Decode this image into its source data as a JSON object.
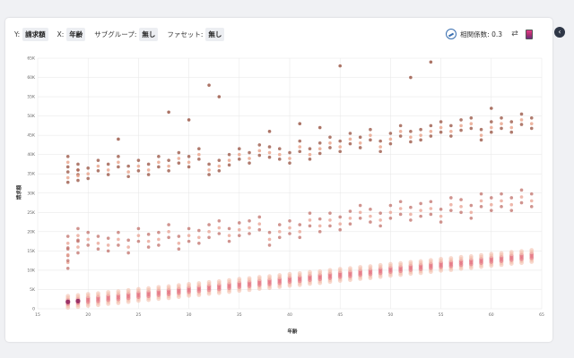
{
  "toolbar": {
    "y_label": "Y:",
    "y_value": "請求額",
    "x_label": "X:",
    "x_value": "年齢",
    "subgroup_label": "サブグループ:",
    "subgroup_value": "無し",
    "facet_label": "ファセット:",
    "facet_value": "無し",
    "correlation_label": "相関係数: 0.3"
  },
  "icons": {
    "correlation": "correlation-icon",
    "swap": "swap-axes-icon",
    "color": "color-scale-icon",
    "collapse": "chevron-left-icon"
  },
  "colors": {
    "low": "#f2b9a6",
    "mid": "#e06070",
    "high": "#8a1f5c",
    "upper": "#9c5a4a"
  },
  "chart_data": {
    "type": "scatter",
    "xlabel": "年齢",
    "ylabel": "請求額",
    "xlim": [
      15,
      65
    ],
    "ylim": [
      0,
      65000
    ],
    "x_ticks": [
      "15",
      "20",
      "25",
      "30",
      "35",
      "40",
      "45",
      "50",
      "55",
      "60",
      "65"
    ],
    "y_ticks": [
      "0",
      "5K",
      "10K",
      "15K",
      "20K",
      "25K",
      "30K",
      "35K",
      "40K",
      "45K",
      "50K",
      "55K",
      "60K",
      "65K"
    ],
    "base_band": {
      "x": [
        18,
        19,
        20,
        21,
        22,
        23,
        24,
        25,
        26,
        27,
        28,
        29,
        30,
        31,
        32,
        33,
        34,
        35,
        36,
        37,
        38,
        39,
        40,
        41,
        42,
        43,
        44,
        45,
        46,
        47,
        48,
        49,
        50,
        51,
        52,
        53,
        54,
        55,
        56,
        57,
        58,
        59,
        60,
        61,
        62,
        63,
        64
      ],
      "y": [
        1800,
        2000,
        2300,
        2500,
        2800,
        3000,
        3300,
        3600,
        3800,
        4100,
        4300,
        4600,
        4900,
        5100,
        5400,
        5600,
        5900,
        6200,
        6400,
        6700,
        6900,
        7200,
        7500,
        7700,
        8000,
        8200,
        8500,
        8800,
        9000,
        9300,
        9500,
        9800,
        10100,
        10300,
        10600,
        10800,
        11100,
        11400,
        11600,
        11900,
        12100,
        12400,
        12700,
        12900,
        13200,
        13400,
        13700
      ]
    },
    "mid_band": {
      "x": [
        18,
        18,
        18,
        19,
        19,
        20,
        21,
        22,
        23,
        24,
        25,
        26,
        27,
        28,
        29,
        30,
        31,
        32,
        33,
        34,
        35,
        36,
        37,
        38,
        39,
        40,
        41,
        42,
        43,
        44,
        45,
        46,
        47,
        48,
        49,
        50,
        51,
        52,
        53,
        54,
        55,
        56,
        57,
        58,
        59,
        60,
        61,
        62,
        63,
        64
      ],
      "y": [
        12000,
        14000,
        17000,
        16000,
        19000,
        18000,
        17000,
        16500,
        18000,
        16000,
        19000,
        17500,
        18000,
        20000,
        17000,
        19000,
        18500,
        20000,
        21000,
        19000,
        20500,
        21000,
        22000,
        18000,
        20000,
        21000,
        20000,
        23000,
        21500,
        23000,
        22000,
        23500,
        25000,
        24000,
        23000,
        25000,
        26000,
        24500,
        25500,
        26000,
        24000,
        27000,
        26500,
        25000,
        28000,
        27000,
        28000,
        27000,
        29000,
        28000
      ]
    },
    "upper_band": {
      "x": [
        18,
        18,
        19,
        19,
        20,
        21,
        22,
        23,
        24,
        25,
        26,
        27,
        28,
        29,
        30,
        31,
        32,
        33,
        34,
        35,
        36,
        37,
        38,
        39,
        40,
        41,
        42,
        43,
        44,
        45,
        46,
        47,
        48,
        49,
        50,
        51,
        52,
        53,
        54,
        55,
        56,
        57,
        58,
        59,
        60,
        61,
        62,
        63,
        64
      ],
      "y": [
        34000,
        38000,
        36000,
        34500,
        35000,
        37000,
        36000,
        38000,
        35500,
        37000,
        36000,
        38000,
        37000,
        39000,
        38000,
        40000,
        36000,
        37000,
        38500,
        40000,
        39000,
        41000,
        40500,
        40000,
        39000,
        42000,
        40000,
        41500,
        43000,
        42000,
        44000,
        43000,
        45000,
        42000,
        44000,
        46000,
        44500,
        45000,
        46000,
        47000,
        46000,
        47500,
        48000,
        45000,
        47000,
        48000,
        47000,
        49000,
        48000
      ]
    },
    "outliers": {
      "x": [
        28,
        30,
        32,
        33,
        41,
        45,
        52,
        54,
        60,
        23,
        43,
        38
      ],
      "y": [
        51000,
        49000,
        58000,
        55000,
        48000,
        63000,
        60000,
        64000,
        52000,
        44000,
        47000,
        46000
      ]
    }
  }
}
